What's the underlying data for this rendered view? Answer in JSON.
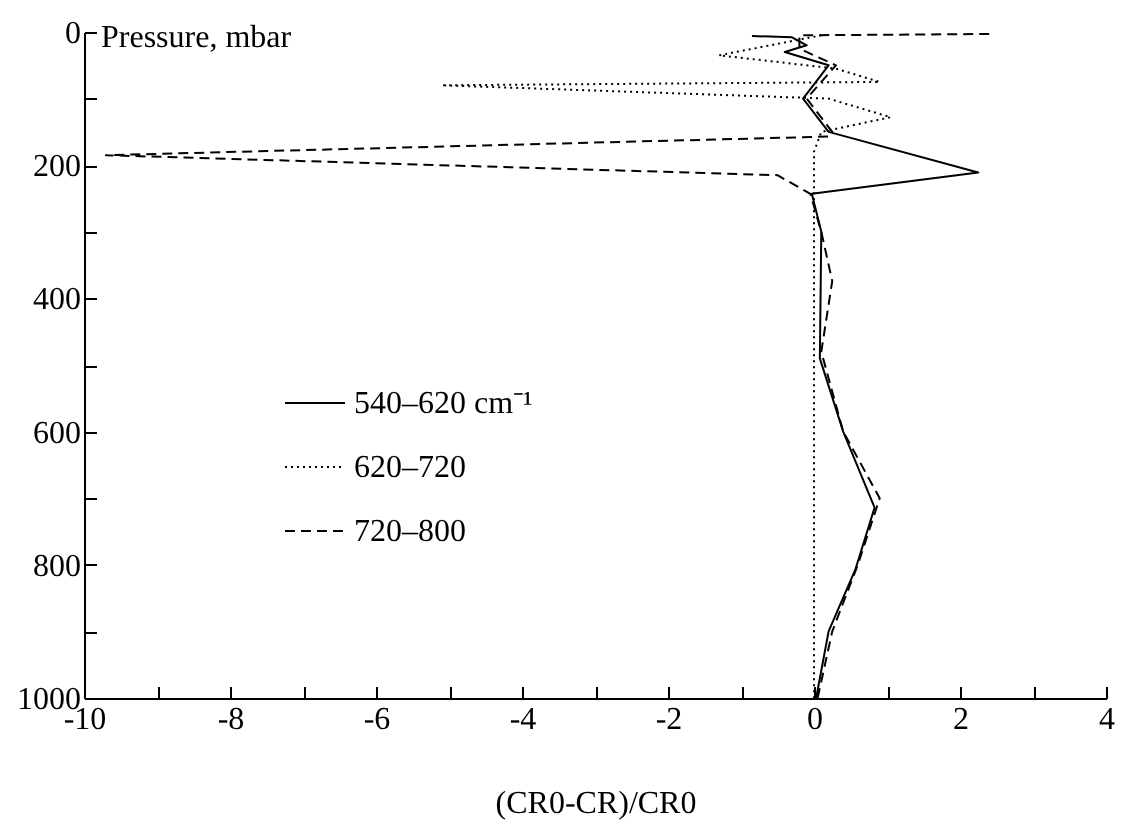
{
  "chart_data": {
    "type": "line",
    "xlabel": "(CR0-CR)/CR0",
    "ylabel": "Pressure, mbar",
    "xlim": [
      -10,
      4
    ],
    "xticks": [
      -10,
      {
        "value": -9,
        "label": null
      },
      -8,
      {
        "value": -7,
        "label": null
      },
      -6,
      {
        "value": -5,
        "label": null
      },
      -4,
      {
        "value": -3,
        "label": null
      },
      -2,
      {
        "value": -1,
        "label": null
      },
      0,
      {
        "value": 1,
        "label": null
      },
      2,
      {
        "value": 3,
        "label": null
      },
      4
    ],
    "ylim": [
      1000,
      0
    ],
    "yticks": [
      0,
      {
        "value": 100,
        "label": null
      },
      200,
      {
        "value": 300,
        "label": null
      },
      400,
      {
        "value": 500,
        "label": null
      },
      600,
      {
        "value": 700,
        "label": null
      },
      800,
      {
        "value": 900,
        "label": null
      },
      1000
    ],
    "legend": "left",
    "grid": false,
    "series": [
      {
        "name": "540–620 cm⁻¹",
        "color": "#000000",
        "line_style": "solid",
        "x": [
          -0.85,
          -0.3,
          -0.1,
          -0.4,
          0.2,
          -0.15,
          0.2,
          2.25,
          -0.03,
          0.1,
          0.08,
          0.4,
          0.83,
          0.57,
          0.2,
          0.03
        ],
        "values": [
          6,
          8,
          20,
          30,
          50,
          100,
          150,
          211,
          243,
          300,
          490,
          600,
          714,
          806,
          900,
          1000
        ]
      },
      {
        "name": "620–720",
        "color": "#000000",
        "line_style": "dotted",
        "x": [
          0.1,
          -1.3,
          0.3,
          0.9,
          -5.1,
          0.2,
          1.05,
          0.1,
          0,
          0
        ],
        "values": [
          5,
          35,
          55,
          75,
          80,
          100,
          128,
          150,
          180,
          1000
        ]
      },
      {
        "name": "720–800",
        "color": "#000000",
        "line_style": "dashed",
        "x": [
          2.4,
          -0.2,
          -0.2,
          0.3,
          -0.1,
          0.25,
          0.2,
          -9.7,
          -0.5,
          -0.05,
          0.1,
          0.25,
          0.1,
          0.4,
          0.9,
          0.6,
          0.25,
          0.05
        ],
        "values": [
          3,
          5,
          25,
          50,
          100,
          150,
          157,
          185,
          215,
          243,
          300,
          374,
          480,
          600,
          700,
          800,
          900,
          1000
        ]
      }
    ]
  }
}
